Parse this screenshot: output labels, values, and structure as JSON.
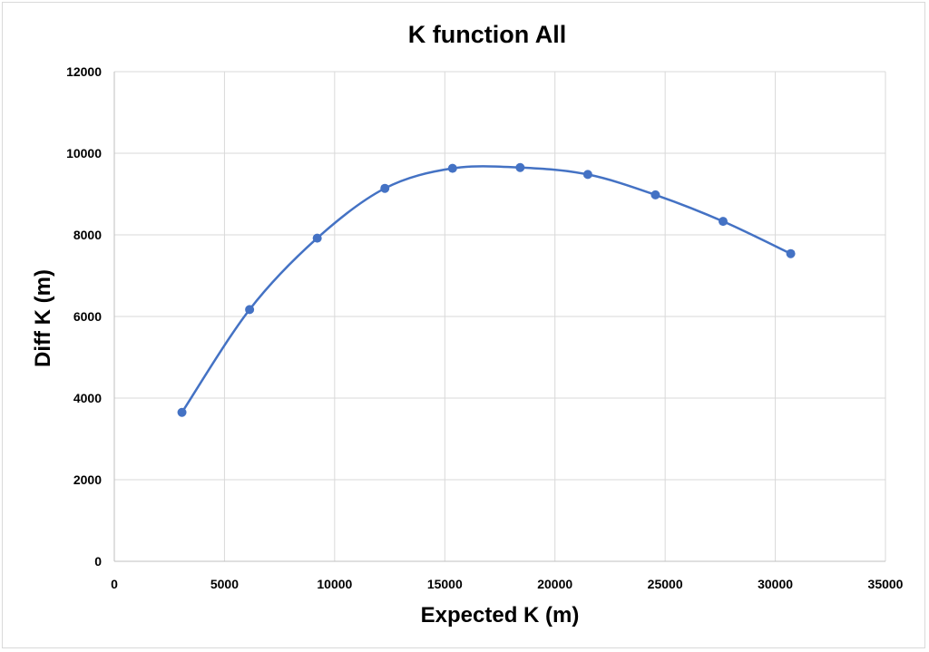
{
  "chart_data": {
    "type": "scatter",
    "title": "K function All",
    "xlabel": "Expected K (m)",
    "ylabel": "Diff K (m)",
    "xlim": [
      0,
      35000
    ],
    "ylim": [
      0,
      12000
    ],
    "x_ticks": [
      0,
      5000,
      10000,
      15000,
      20000,
      25000,
      30000,
      35000
    ],
    "y_ticks": [
      0,
      2000,
      4000,
      6000,
      8000,
      10000,
      12000
    ],
    "grid": "both",
    "legend": "none",
    "line_style": "smoothed line with markers",
    "series": [
      {
        "color": "#4472c4",
        "x": [
          3070,
          6140,
          9210,
          12280,
          15350,
          18420,
          21490,
          24560,
          27630,
          30700
        ],
        "y": [
          3650,
          6170,
          7920,
          9140,
          9630,
          9650,
          9480,
          8980,
          8330,
          7540
        ]
      }
    ]
  }
}
